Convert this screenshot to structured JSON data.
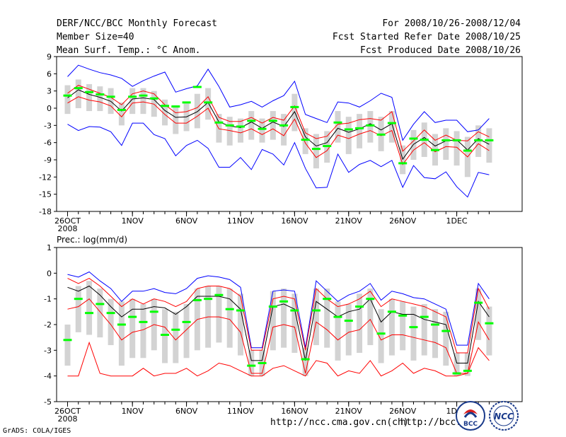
{
  "header": {
    "title": "DERF/NCC/BCC Monthly Forecast",
    "member_size": "Member Size=40",
    "variable": "Mean Surf. Temp.: °C Anom.",
    "period": "For 2008/10/26-2008/12/04",
    "started": "Fcst Started Refer Date 2008/10/25",
    "produced": "Fcst Produced Date 2008/10/26"
  },
  "footer": {
    "url1": "http://ncc.cma.gov.cn(ch)",
    "url2": "http://bcc.c",
    "credit": "GrADS: COLA/IGES",
    "logo_left_text": "BCC",
    "logo_right_text": "NCC"
  },
  "colors": {
    "envelope": "#0000ff",
    "spread": "#ff0000",
    "mean": "#000000",
    "median": "#00ff00",
    "box": "#d3d3d3"
  },
  "chart_data": [
    {
      "type": "line",
      "name": "temperature",
      "title": "Mean Surf. Temp.: °C Anom.",
      "ylim": [
        -18,
        9
      ],
      "yticks": [
        9,
        6,
        3,
        0,
        -3,
        -6,
        -9,
        -12,
        -15,
        -18
      ],
      "x": [
        1,
        2,
        3,
        4,
        5,
        6,
        7,
        8,
        9,
        10,
        11,
        12,
        13,
        14,
        15,
        16,
        17,
        18,
        19,
        20,
        21,
        22,
        23,
        24,
        25,
        26,
        27,
        28,
        29,
        30,
        31,
        32,
        33,
        34,
        35,
        36,
        37,
        38,
        39,
        40
      ],
      "xtick_labels": [
        {
          "x": 1,
          "label": "26OCT",
          "sub": "2008"
        },
        {
          "x": 7,
          "label": "1NOV"
        },
        {
          "x": 12,
          "label": "6NOV"
        },
        {
          "x": 17,
          "label": "11NOV"
        },
        {
          "x": 22,
          "label": "16NOV"
        },
        {
          "x": 27,
          "label": "21NOV"
        },
        {
          "x": 32,
          "label": "26NOV"
        },
        {
          "x": 37,
          "label": "1DEC"
        }
      ],
      "series": [
        {
          "name": "max",
          "color": "blue",
          "values": [
            5.5,
            7.5,
            6.8,
            6.2,
            5.8,
            5.2,
            3.8,
            4.8,
            5.6,
            6.3,
            2.8,
            3.4,
            3.9,
            6.8,
            3.8,
            0.2,
            0.6,
            1.2,
            0.2,
            1.3,
            2.2,
            4.7,
            -1.1,
            -1.8,
            -2.5,
            1.1,
            0.9,
            0.2,
            1.3,
            2.6,
            1.9,
            -5.6,
            -2.8,
            -0.6,
            -2.5,
            -2.1,
            -2.1,
            -4.1,
            -3.8,
            -1.8
          ]
        },
        {
          "name": "mean_plus",
          "color": "red",
          "values": [
            2.6,
            4.0,
            3.3,
            2.6,
            1.9,
            0.6,
            2.5,
            3.0,
            2.5,
            0.6,
            -0.8,
            -0.6,
            0.1,
            2.0,
            -1.6,
            -2.3,
            -2.3,
            -1.6,
            -2.6,
            -1.6,
            -2.1,
            0.4,
            -4.3,
            -5.3,
            -4.9,
            -2.8,
            -2.6,
            -2.0,
            -1.8,
            -2.1,
            -0.6,
            -7.5,
            -5.7,
            -3.8,
            -5.6,
            -4.7,
            -5.6,
            -5.7,
            -4.1,
            -5.0
          ]
        },
        {
          "name": "mean",
          "color": "black",
          "values": [
            1.8,
            3.2,
            2.4,
            1.9,
            1.2,
            -0.5,
            1.6,
            1.8,
            1.5,
            -0.4,
            -1.6,
            -1.5,
            -0.6,
            1.0,
            -2.4,
            -3.1,
            -3.4,
            -2.4,
            -3.5,
            -2.4,
            -3.2,
            -0.6,
            -5.0,
            -6.6,
            -6.0,
            -3.5,
            -4.2,
            -3.6,
            -2.7,
            -3.8,
            -2.7,
            -8.9,
            -6.3,
            -5.1,
            -6.6,
            -5.7,
            -5.5,
            -7.3,
            -5.3,
            -6.3
          ]
        },
        {
          "name": "mean_minus",
          "color": "red",
          "values": [
            0.9,
            2.0,
            1.4,
            1.1,
            0.4,
            -1.5,
            0.9,
            1.1,
            0.7,
            -1.1,
            -2.6,
            -2.6,
            -1.4,
            0.0,
            -3.6,
            -3.9,
            -4.3,
            -3.6,
            -4.6,
            -3.6,
            -4.8,
            -1.9,
            -6.1,
            -8.6,
            -7.4,
            -4.7,
            -5.3,
            -4.5,
            -3.9,
            -4.8,
            -3.9,
            -9.8,
            -7.3,
            -6.0,
            -7.6,
            -6.7,
            -6.8,
            -8.5,
            -6.2,
            -7.4
          ]
        },
        {
          "name": "min",
          "color": "blue",
          "values": [
            -2.8,
            -3.9,
            -3.2,
            -3.3,
            -4.1,
            -6.5,
            -2.6,
            -2.6,
            -4.6,
            -5.3,
            -8.3,
            -6.5,
            -5.6,
            -7.0,
            -10.3,
            -10.3,
            -8.6,
            -10.7,
            -7.2,
            -8.0,
            -9.9,
            -6.0,
            -10.5,
            -13.9,
            -13.8,
            -8.0,
            -11.2,
            -9.8,
            -9.1,
            -10.2,
            -9.1,
            -13.8,
            -10.0,
            -12.1,
            -12.3,
            -11.1,
            -13.7,
            -15.5,
            -11.2,
            -11.6
          ]
        },
        {
          "name": "median",
          "color": "green",
          "values": [
            2.2,
            3.5,
            2.8,
            2.4,
            2.0,
            -0.3,
            2.0,
            2.2,
            1.7,
            0.4,
            0.3,
            1.0,
            3.7,
            1.0,
            -2.5,
            -3.0,
            -3.2,
            -2.2,
            -3.6,
            -2.2,
            -3.0,
            0.2,
            -5.5,
            -7.1,
            -6.6,
            -2.5,
            -3.7,
            -3.5,
            -3.0,
            -4.6,
            -2.6,
            -9.6,
            -5.3,
            -5.5,
            -7.3,
            -5.6,
            -5.6,
            -7.4,
            -5.6,
            -5.6
          ]
        },
        {
          "name": "q75",
          "color": "gray",
          "values": [
            4.0,
            5.0,
            4.2,
            3.8,
            3.5,
            1.0,
            3.5,
            3.5,
            3.0,
            1.5,
            0.5,
            0.8,
            2.5,
            3.5,
            -1.0,
            -1.5,
            -1.8,
            -0.5,
            -1.8,
            -0.5,
            -1.0,
            2.5,
            -3.5,
            -4.5,
            -4.0,
            -0.5,
            -1.5,
            -1.0,
            -0.5,
            -1.5,
            -0.5,
            -6.5,
            -3.8,
            -2.5,
            -4.5,
            -3.5,
            -4.0,
            -5.0,
            -3.0,
            -3.5
          ]
        },
        {
          "name": "q25",
          "color": "gray",
          "values": [
            -1.0,
            0.0,
            -0.5,
            -0.5,
            -1.0,
            -3.0,
            -1.0,
            -1.0,
            -1.5,
            -3.0,
            -4.5,
            -4.0,
            -3.5,
            -2.0,
            -6.0,
            -6.5,
            -6.0,
            -5.5,
            -6.0,
            -5.5,
            -6.5,
            -4.0,
            -8.0,
            -10.5,
            -9.5,
            -6.0,
            -8.0,
            -7.0,
            -6.0,
            -7.5,
            -6.0,
            -11.5,
            -9.0,
            -8.5,
            -10.0,
            -9.0,
            -10.0,
            -12.0,
            -8.5,
            -9.5
          ]
        }
      ]
    },
    {
      "type": "line",
      "name": "precipitation",
      "title": "Prec.: log(mm/d)",
      "ylim": [
        -5,
        1
      ],
      "yticks": [
        1,
        0,
        -1,
        -2,
        -3,
        -4,
        -5
      ],
      "x": [
        1,
        2,
        3,
        4,
        5,
        6,
        7,
        8,
        9,
        10,
        11,
        12,
        13,
        14,
        15,
        16,
        17,
        18,
        19,
        20,
        21,
        22,
        23,
        24,
        25,
        26,
        27,
        28,
        29,
        30,
        31,
        32,
        33,
        34,
        35,
        36,
        37,
        38,
        39,
        40
      ],
      "xtick_labels": [
        {
          "x": 1,
          "label": "26OCT",
          "sub": "2008"
        },
        {
          "x": 7,
          "label": "1NOV"
        },
        {
          "x": 12,
          "label": "6NOV"
        },
        {
          "x": 17,
          "label": "11NOV"
        },
        {
          "x": 22,
          "label": "16NOV"
        },
        {
          "x": 27,
          "label": "21NOV"
        },
        {
          "x": 32,
          "label": "26NOV"
        },
        {
          "x": 37,
          "label": "1DEC"
        }
      ],
      "series": [
        {
          "name": "max",
          "color": "blue",
          "values": [
            -0.05,
            -0.15,
            0.05,
            -0.3,
            -0.6,
            -1.1,
            -0.7,
            -0.7,
            -0.6,
            -0.75,
            -0.8,
            -0.6,
            -0.2,
            -0.1,
            -0.15,
            -0.25,
            -0.55,
            -2.9,
            -2.9,
            -0.7,
            -0.65,
            -0.7,
            -2.9,
            -0.3,
            -0.7,
            -1.1,
            -0.85,
            -0.7,
            -0.4,
            -1.05,
            -0.7,
            -0.8,
            -0.95,
            -1.0,
            -1.2,
            -1.4,
            -2.8,
            -2.8,
            -0.4,
            -1.0
          ]
        },
        {
          "name": "mean_plus",
          "color": "red",
          "values": [
            -0.2,
            -0.4,
            -0.2,
            -0.5,
            -0.9,
            -1.3,
            -1.0,
            -1.2,
            -1.0,
            -1.1,
            -1.3,
            -1.1,
            -0.6,
            -0.5,
            -0.5,
            -0.6,
            -0.9,
            -3.0,
            -3.0,
            -1.0,
            -0.9,
            -1.0,
            -3.0,
            -0.6,
            -1.0,
            -1.3,
            -1.2,
            -1.0,
            -0.7,
            -1.3,
            -1.0,
            -1.1,
            -1.2,
            -1.3,
            -1.5,
            -1.7,
            -3.1,
            -3.1,
            -0.6,
            -1.4
          ]
        },
        {
          "name": "mean",
          "color": "black",
          "values": [
            -0.55,
            -0.7,
            -0.5,
            -0.85,
            -1.3,
            -1.7,
            -1.4,
            -1.4,
            -1.3,
            -1.35,
            -1.6,
            -1.3,
            -0.9,
            -0.9,
            -0.9,
            -1.0,
            -1.4,
            -3.4,
            -3.4,
            -1.3,
            -1.2,
            -1.4,
            -3.4,
            -1.1,
            -1.4,
            -1.7,
            -1.5,
            -1.4,
            -1.0,
            -1.9,
            -1.5,
            -1.6,
            -1.6,
            -1.8,
            -1.9,
            -2.0,
            -3.5,
            -3.5,
            -1.1,
            -1.7
          ]
        },
        {
          "name": "mean_minus",
          "color": "red",
          "values": [
            -1.4,
            -1.3,
            -1.0,
            -1.5,
            -2.0,
            -2.6,
            -2.3,
            -2.2,
            -2.0,
            -2.1,
            -2.6,
            -2.2,
            -1.8,
            -1.7,
            -1.7,
            -1.8,
            -2.3,
            -3.9,
            -3.9,
            -2.1,
            -2.0,
            -2.1,
            -3.9,
            -1.9,
            -2.2,
            -2.6,
            -2.3,
            -2.2,
            -1.8,
            -2.6,
            -2.4,
            -2.4,
            -2.5,
            -2.6,
            -2.7,
            -2.9,
            -3.9,
            -3.9,
            -1.9,
            -2.6
          ]
        },
        {
          "name": "min",
          "color": "red",
          "values": [
            -4.0,
            -4.0,
            -2.7,
            -3.9,
            -4.0,
            -4.0,
            -4.0,
            -3.7,
            -4.0,
            -3.9,
            -3.9,
            -3.7,
            -4.0,
            -3.8,
            -3.5,
            -3.6,
            -3.8,
            -4.0,
            -4.0,
            -3.7,
            -3.6,
            -3.8,
            -4.0,
            -3.4,
            -3.5,
            -4.0,
            -3.8,
            -3.9,
            -3.4,
            -4.0,
            -3.8,
            -3.5,
            -3.9,
            -3.7,
            -3.8,
            -4.0,
            -4.0,
            -3.9,
            -2.9,
            -3.4
          ]
        },
        {
          "name": "median",
          "color": "green",
          "values": [
            -2.6,
            -1.0,
            -1.55,
            -1.2,
            -1.55,
            -2.0,
            -1.7,
            -1.9,
            -1.5,
            -2.4,
            -2.2,
            -1.9,
            -1.05,
            -1.0,
            -0.85,
            -1.4,
            -1.45,
            -3.6,
            -3.5,
            -1.3,
            -1.1,
            -1.45,
            -3.35,
            -1.45,
            -1.0,
            -1.7,
            -1.85,
            -1.3,
            -1.0,
            -2.35,
            -1.5,
            -1.65,
            -2.1,
            -1.7,
            -2.0,
            -2.25,
            -3.9,
            -3.8,
            -1.15,
            -1.95
          ]
        },
        {
          "name": "q75",
          "color": "gray",
          "values": [
            -2.0,
            -0.5,
            -0.3,
            -0.6,
            -1.0,
            -1.1,
            -1.0,
            -1.2,
            -1.0,
            -1.4,
            -1.5,
            -1.2,
            -0.6,
            -0.5,
            -0.5,
            -0.6,
            -0.8,
            -3.0,
            -3.0,
            -0.7,
            -0.6,
            -0.8,
            -2.9,
            -0.6,
            -0.6,
            -1.1,
            -1.2,
            -0.8,
            -0.6,
            -1.4,
            -1.0,
            -1.1,
            -1.3,
            -1.2,
            -1.4,
            -1.5,
            -3.1,
            -3.1,
            -0.6,
            -1.3
          ]
        },
        {
          "name": "q25",
          "color": "gray",
          "values": [
            -3.6,
            -2.3,
            -2.4,
            -2.5,
            -2.8,
            -3.6,
            -3.3,
            -3.3,
            -3.0,
            -3.5,
            -3.5,
            -3.3,
            -3.0,
            -2.9,
            -2.7,
            -2.9,
            -3.2,
            -4.0,
            -4.0,
            -3.0,
            -2.9,
            -3.1,
            -4.0,
            -2.8,
            -2.9,
            -3.4,
            -3.2,
            -3.1,
            -2.8,
            -3.5,
            -3.2,
            -3.0,
            -3.4,
            -3.2,
            -3.3,
            -3.6,
            -4.0,
            -4.0,
            -2.6,
            -3.2
          ]
        }
      ]
    }
  ]
}
